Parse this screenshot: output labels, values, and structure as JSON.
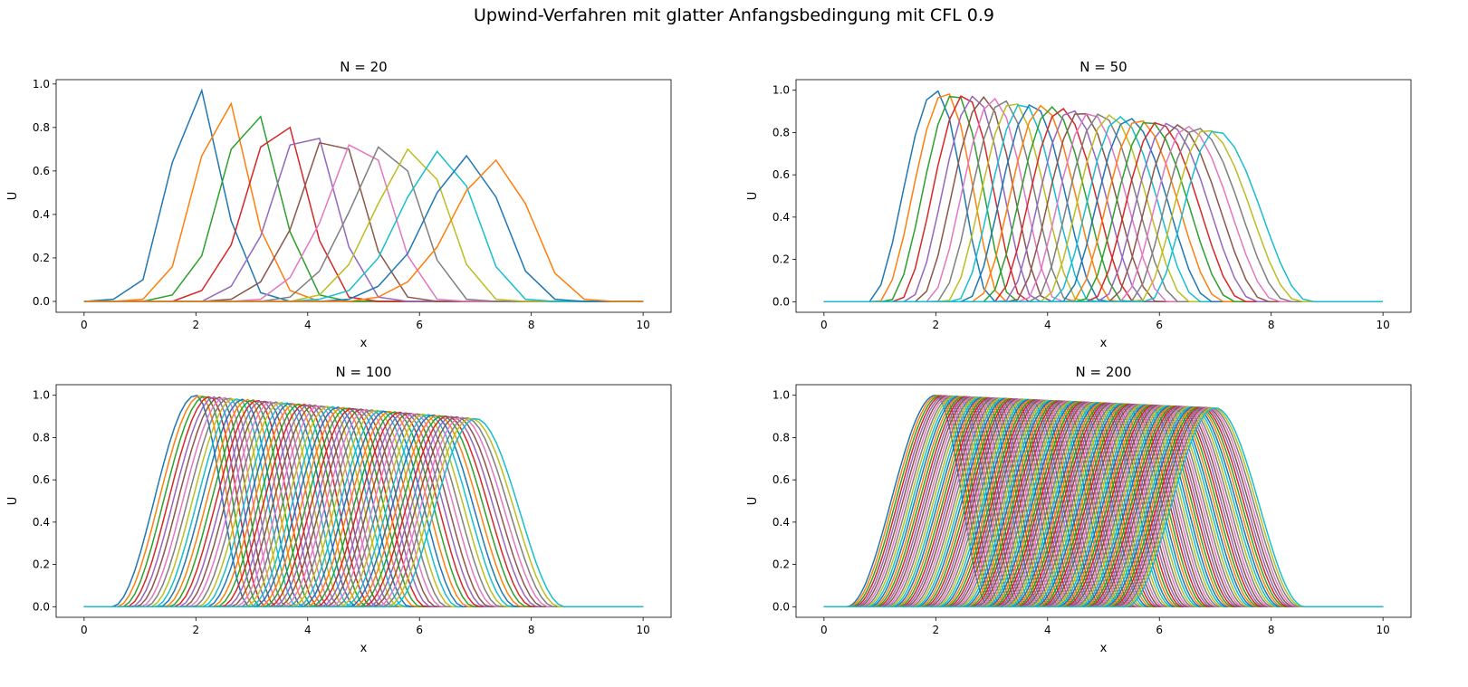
{
  "figure": {
    "suptitle": "Upwind-Verfahren mit glatter Anfangsbedingung mit CFL 0.9"
  },
  "chart_data": [
    {
      "type": "line",
      "title": "N = 20",
      "xlabel": "x",
      "ylabel": "U",
      "xlim": [
        -0.5,
        10.5
      ],
      "ylim": [
        -0.05,
        1.02
      ],
      "xticks": [
        "0",
        "2",
        "4",
        "6",
        "8",
        "10"
      ],
      "yticks": [
        "0.0",
        "0.2",
        "0.4",
        "0.6",
        "0.8",
        "1.0"
      ],
      "grid": false,
      "legend": "none",
      "x": [
        0.0,
        0.526,
        1.053,
        1.579,
        2.105,
        2.632,
        3.158,
        3.684,
        4.211,
        4.737,
        5.263,
        5.789,
        6.316,
        6.842,
        7.368,
        7.895,
        8.421,
        8.947,
        9.474,
        10.0
      ],
      "series": [
        {
          "color": "#1f77b4",
          "values": [
            0.0,
            0.01,
            0.1,
            0.64,
            0.97,
            0.37,
            0.04,
            0.0,
            0.0,
            0.0,
            0.0,
            0.0,
            0.0,
            0.0,
            0.0,
            0.0,
            0.0,
            0.0,
            0.0,
            0.0
          ]
        },
        {
          "color": "#ff7f0e",
          "values": [
            0.0,
            0.0,
            0.01,
            0.16,
            0.67,
            0.91,
            0.33,
            0.05,
            0.0,
            0.0,
            0.0,
            0.0,
            0.0,
            0.0,
            0.0,
            0.0,
            0.0,
            0.0,
            0.0,
            0.0
          ]
        },
        {
          "color": "#2ca02c",
          "values": [
            0.0,
            0.0,
            0.0,
            0.03,
            0.21,
            0.7,
            0.85,
            0.32,
            0.03,
            0.0,
            0.0,
            0.0,
            0.0,
            0.0,
            0.0,
            0.0,
            0.0,
            0.0,
            0.0,
            0.0
          ]
        },
        {
          "color": "#d62728",
          "values": [
            0.0,
            0.0,
            0.0,
            0.0,
            0.05,
            0.26,
            0.71,
            0.8,
            0.28,
            0.02,
            0.0,
            0.0,
            0.0,
            0.0,
            0.0,
            0.0,
            0.0,
            0.0,
            0.0,
            0.0
          ]
        },
        {
          "color": "#9467bd",
          "values": [
            0.0,
            0.0,
            0.0,
            0.0,
            0.0,
            0.07,
            0.3,
            0.72,
            0.75,
            0.25,
            0.02,
            0.0,
            0.0,
            0.0,
            0.0,
            0.0,
            0.0,
            0.0,
            0.0,
            0.0
          ]
        },
        {
          "color": "#8c564b",
          "values": [
            0.0,
            0.0,
            0.0,
            0.0,
            0.0,
            0.01,
            0.09,
            0.33,
            0.73,
            0.7,
            0.23,
            0.02,
            0.0,
            0.0,
            0.0,
            0.0,
            0.0,
            0.0,
            0.0,
            0.0
          ]
        },
        {
          "color": "#e377c2",
          "values": [
            0.0,
            0.0,
            0.0,
            0.0,
            0.0,
            0.0,
            0.01,
            0.11,
            0.36,
            0.72,
            0.65,
            0.21,
            0.01,
            0.0,
            0.0,
            0.0,
            0.0,
            0.0,
            0.0,
            0.0
          ]
        },
        {
          "color": "#7f7f7f",
          "values": [
            0.0,
            0.0,
            0.0,
            0.0,
            0.0,
            0.0,
            0.0,
            0.02,
            0.14,
            0.41,
            0.71,
            0.6,
            0.19,
            0.01,
            0.0,
            0.0,
            0.0,
            0.0,
            0.0,
            0.0
          ]
        },
        {
          "color": "#bcbd22",
          "values": [
            0.0,
            0.0,
            0.0,
            0.0,
            0.0,
            0.0,
            0.0,
            0.0,
            0.03,
            0.17,
            0.45,
            0.7,
            0.56,
            0.17,
            0.01,
            0.0,
            0.0,
            0.0,
            0.0,
            0.0
          ]
        },
        {
          "color": "#17becf",
          "values": [
            0.0,
            0.0,
            0.0,
            0.0,
            0.0,
            0.0,
            0.0,
            0.0,
            0.01,
            0.05,
            0.2,
            0.48,
            0.69,
            0.53,
            0.16,
            0.01,
            0.0,
            0.0,
            0.0,
            0.0
          ]
        },
        {
          "color": "#1f77b4",
          "values": [
            0.0,
            0.0,
            0.0,
            0.0,
            0.0,
            0.0,
            0.0,
            0.0,
            0.0,
            0.01,
            0.07,
            0.22,
            0.5,
            0.67,
            0.48,
            0.14,
            0.01,
            0.0,
            0.0,
            0.0
          ]
        },
        {
          "color": "#ff7f0e",
          "values": [
            0.0,
            0.0,
            0.0,
            0.0,
            0.0,
            0.0,
            0.0,
            0.0,
            0.0,
            0.0,
            0.02,
            0.09,
            0.25,
            0.51,
            0.65,
            0.45,
            0.13,
            0.01,
            0.0,
            0.0
          ]
        }
      ]
    },
    {
      "type": "line",
      "title": "N = 50",
      "xlabel": "x",
      "ylabel": "U",
      "xlim": [
        -0.5,
        10.5
      ],
      "ylim": [
        -0.05,
        1.05
      ],
      "xticks": [
        "0",
        "2",
        "4",
        "6",
        "8",
        "10"
      ],
      "yticks": [
        "0.0",
        "0.2",
        "0.4",
        "0.6",
        "0.8",
        "1.0"
      ],
      "grid": false,
      "legend": "none",
      "profile": {
        "count": 30,
        "first_peak_x": 2.0,
        "last_peak_x": 7.0,
        "first_peak": 1.0,
        "last_peak": 0.81,
        "rise": 1.2,
        "fall": 1.7,
        "x_step": 0.204
      }
    },
    {
      "type": "line",
      "title": "N = 100",
      "xlabel": "x",
      "ylabel": "U",
      "xlim": [
        -0.5,
        10.5
      ],
      "ylim": [
        -0.05,
        1.05
      ],
      "xticks": [
        "0",
        "2",
        "4",
        "6",
        "8",
        "10"
      ],
      "yticks": [
        "0.0",
        "0.2",
        "0.4",
        "0.6",
        "0.8",
        "1.0"
      ],
      "grid": false,
      "legend": "none",
      "profile": {
        "count": 60,
        "first_peak_x": 2.0,
        "last_peak_x": 7.0,
        "first_peak": 1.0,
        "last_peak": 0.89,
        "rise": 1.5,
        "fall": 1.6,
        "x_step": 0.101
      }
    },
    {
      "type": "line",
      "title": "N = 200",
      "xlabel": "x",
      "ylabel": "U",
      "xlim": [
        -0.5,
        10.5
      ],
      "ylim": [
        -0.05,
        1.05
      ],
      "xticks": [
        "0",
        "2",
        "4",
        "6",
        "8",
        "10"
      ],
      "yticks": [
        "0.0",
        "0.2",
        "0.4",
        "0.6",
        "0.8",
        "1.0"
      ],
      "grid": false,
      "legend": "none",
      "profile": {
        "count": 120,
        "first_peak_x": 2.0,
        "last_peak_x": 7.0,
        "first_peak": 1.0,
        "last_peak": 0.94,
        "rise": 1.6,
        "fall": 1.6,
        "x_step": 0.05
      }
    }
  ],
  "palette": [
    "#1f77b4",
    "#ff7f0e",
    "#2ca02c",
    "#d62728",
    "#9467bd",
    "#8c564b",
    "#e377c2",
    "#7f7f7f",
    "#bcbd22",
    "#17becf"
  ]
}
